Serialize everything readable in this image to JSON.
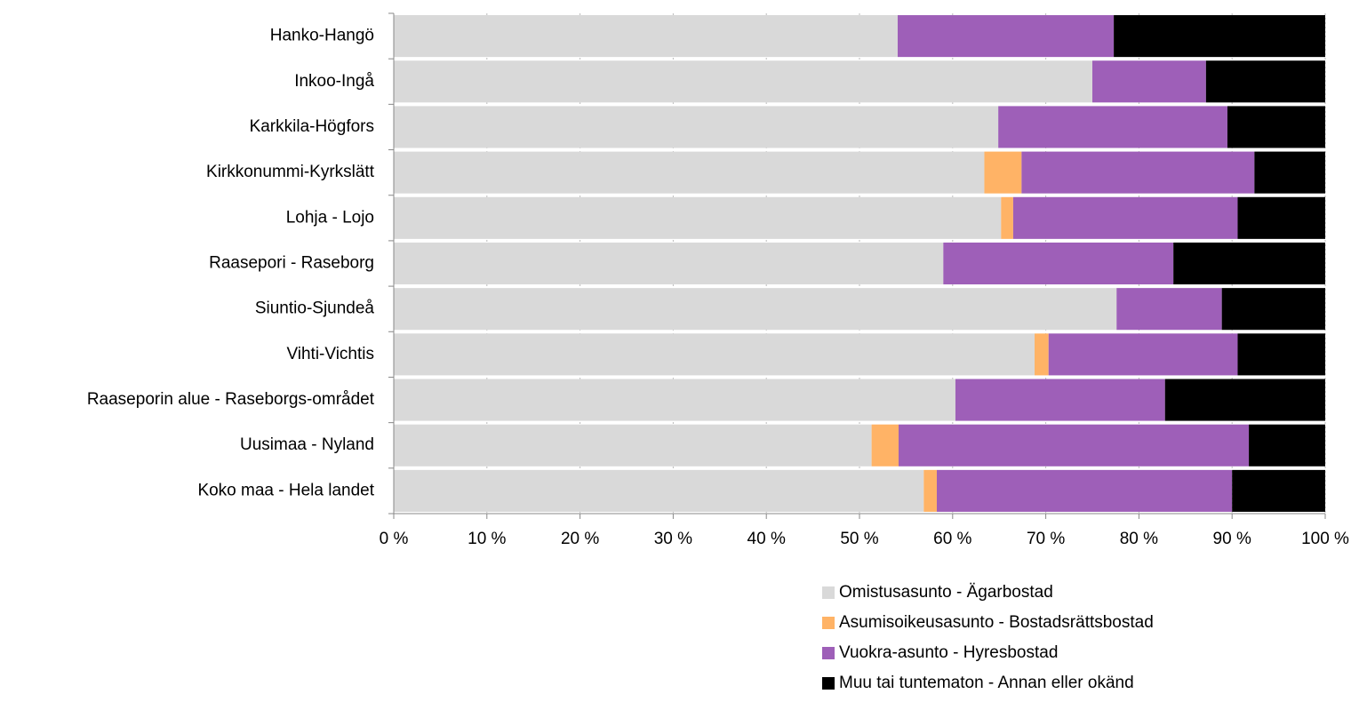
{
  "chart_data": {
    "type": "stacked-barh",
    "categories": [
      "Hanko-Hangö",
      "Inkoo-Ingå",
      "Karkkila-Högfors",
      "Kirkkonummi-Kyrkslätt",
      "Lohja - Lojo",
      "Raasepori - Raseborg",
      "Siuntio-Sjundeå",
      "Vihti-Vichtis",
      "Raaseporin alue - Raseborgs-området",
      "Uusimaa - Nyland",
      "Koko maa - Hela landet"
    ],
    "series": [
      {
        "name": "Omistusasunto - Ägarbostad",
        "color": "#d9d9d9",
        "values": [
          54.1,
          75.0,
          64.9,
          63.4,
          65.2,
          59.0,
          77.6,
          68.8,
          60.3,
          51.3,
          56.9
        ]
      },
      {
        "name": "Asumisoikeusasunto - Bostadsrättsbostad",
        "color": "#ffb366",
        "values": [
          0,
          0,
          0,
          4.0,
          1.3,
          0,
          0,
          1.5,
          0,
          2.9,
          1.4
        ]
      },
      {
        "name": "Vuokra-asunto - Hyresbostad",
        "color": "#9e5fb8",
        "values": [
          23.2,
          12.2,
          24.6,
          25.0,
          24.1,
          24.7,
          11.3,
          20.3,
          22.5,
          37.6,
          31.7
        ]
      },
      {
        "name": "Muu tai tuntematon - Annan eller okänd",
        "color": "#000000",
        "values": [
          22.7,
          12.8,
          10.5,
          7.6,
          9.4,
          16.3,
          11.1,
          9.4,
          17.2,
          8.2,
          10.0
        ]
      }
    ],
    "xlim": [
      0,
      100
    ],
    "xticks": [
      {
        "value": 0,
        "label": "0 %"
      },
      {
        "value": 10,
        "label": "10 %"
      },
      {
        "value": 20,
        "label": "20 %"
      },
      {
        "value": 30,
        "label": "30 %"
      },
      {
        "value": 40,
        "label": "40 %"
      },
      {
        "value": 50,
        "label": "50 %"
      },
      {
        "value": 60,
        "label": "60 %"
      },
      {
        "value": 70,
        "label": "70 %"
      },
      {
        "value": 80,
        "label": "80 %"
      },
      {
        "value": 90,
        "label": "90 %"
      },
      {
        "value": 100,
        "label": "100 %"
      }
    ],
    "grid": true,
    "legend": "bottom-right"
  }
}
